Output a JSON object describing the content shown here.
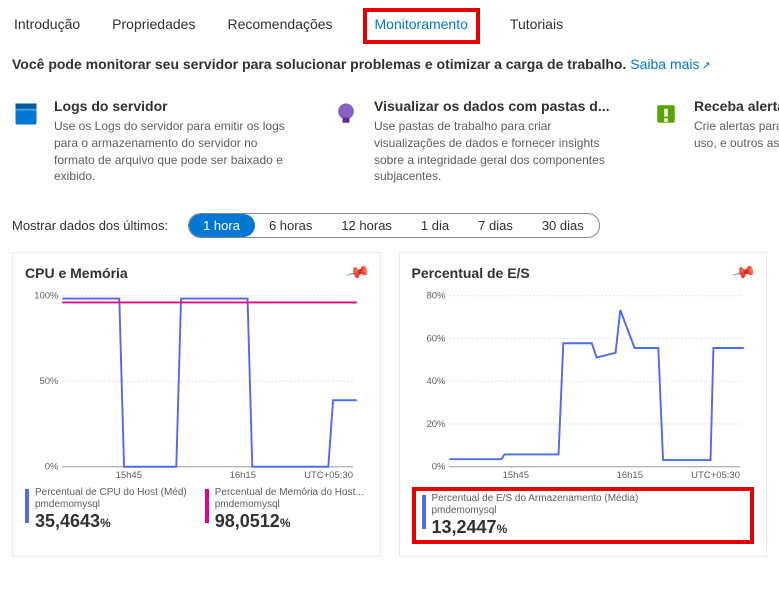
{
  "tabs": {
    "items": [
      {
        "label": "Introdução"
      },
      {
        "label": "Propriedades"
      },
      {
        "label": "Recomendações"
      },
      {
        "label": "Monitoramento"
      },
      {
        "label": "Tutoriais"
      }
    ],
    "activeIndex": 3
  },
  "descLine": {
    "text": "Você pode monitorar seu servidor para solucionar problemas e otimizar a carga de trabalho.",
    "link": "Saiba mais"
  },
  "cards": [
    {
      "title": "Logs do servidor",
      "desc": "Use os Logs do servidor para emitir os logs para o armazenamento do servidor no formato de arquivo que pode ser baixado e exibido.",
      "icon": "book",
      "iconBg": "#0078d4"
    },
    {
      "title": "Visualizar os dados com pastas d...",
      "desc": "Use pastas de trabalho para criar visualizações de dados e fornecer insights sobre a integridade geral dos componentes subjacentes.",
      "icon": "bulb",
      "iconBg": "#8661c5"
    },
    {
      "title": "Receba alertas de",
      "desc": "Crie alertas para monitorar a integridade, o uso, e outros aspectos do",
      "icon": "alert",
      "iconBg": "#57a300"
    }
  ],
  "timefilter": {
    "label": "Mostrar dados dos últimos:",
    "options": [
      "1 hora",
      "6 horas",
      "12 horas",
      "1 dia",
      "7 dias",
      "30 dias"
    ],
    "selectedIndex": 0
  },
  "charts": {
    "cpu": {
      "title": "CPU e Memória",
      "yTicks": [
        "100%",
        "50%",
        "0%"
      ],
      "xTicks": [
        "15h45",
        "16h15",
        "UTC+05:30"
      ],
      "series": [
        {
          "name": "Percentual de CPU do Host (Méd)",
          "sub": "pmdemomysql",
          "value": "35,4643",
          "unit": "%",
          "color": "#4f6bed",
          "points": [
            [
              0,
              8
            ],
            [
              60,
              8
            ],
            [
              65,
              185
            ],
            [
              120,
              185
            ],
            [
              125,
              8
            ],
            [
              195,
              8
            ],
            [
              200,
              185
            ],
            [
              280,
              185
            ],
            [
              285,
              115
            ],
            [
              310,
              115
            ]
          ]
        },
        {
          "name": "Percentual de Memória do Host...",
          "sub": "pmdemomysql",
          "value": "98,0512",
          "unit": "%",
          "color": "#e3008c",
          "points": [
            [
              0,
              12
            ],
            [
              310,
              12
            ]
          ]
        }
      ]
    },
    "io": {
      "title": "Percentual de E/S",
      "yTicks": [
        "80%",
        "60%",
        "40%",
        "20%",
        "0%"
      ],
      "xTicks": [
        "15h45",
        "16h15",
        "UTC+05:30"
      ],
      "series": [
        {
          "name": "Percentual de E/S do Armazenamento (Média)",
          "sub": "pmdemomysql",
          "value": "13,2447",
          "unit": "%",
          "color": "#4f6bed",
          "points": [
            [
              0,
              177
            ],
            [
              55,
              177
            ],
            [
              58,
              172
            ],
            [
              115,
              172
            ],
            [
              120,
              55
            ],
            [
              150,
              55
            ],
            [
              155,
              70
            ],
            [
              175,
              65
            ],
            [
              180,
              20
            ],
            [
              195,
              60
            ],
            [
              220,
              60
            ],
            [
              225,
              178
            ],
            [
              275,
              178
            ],
            [
              278,
              60
            ],
            [
              310,
              60
            ]
          ]
        }
      ],
      "highlightLegend": true
    }
  }
}
